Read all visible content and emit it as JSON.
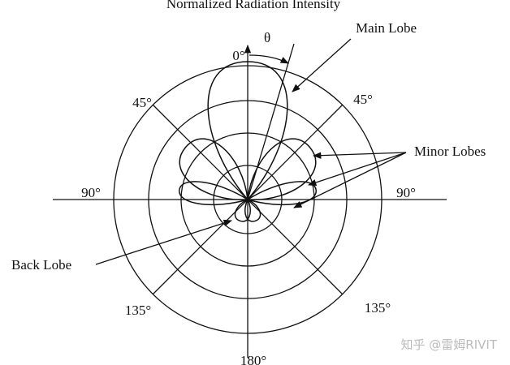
{
  "title": "Normalized Radiation Intensity",
  "theta": "θ",
  "angles": {
    "top": "0°",
    "upper_left": "45°",
    "upper_right": "45°",
    "left": "90°",
    "right": "90°",
    "lower_left": "135°",
    "lower_right": "135°",
    "bottom": "180°"
  },
  "annotations": {
    "main_lobe": "Main Lobe",
    "minor_lobes": "Minor Lobes",
    "back_lobe": "Back Lobe"
  },
  "watermark": "知乎 @雷姆RIVIT"
}
